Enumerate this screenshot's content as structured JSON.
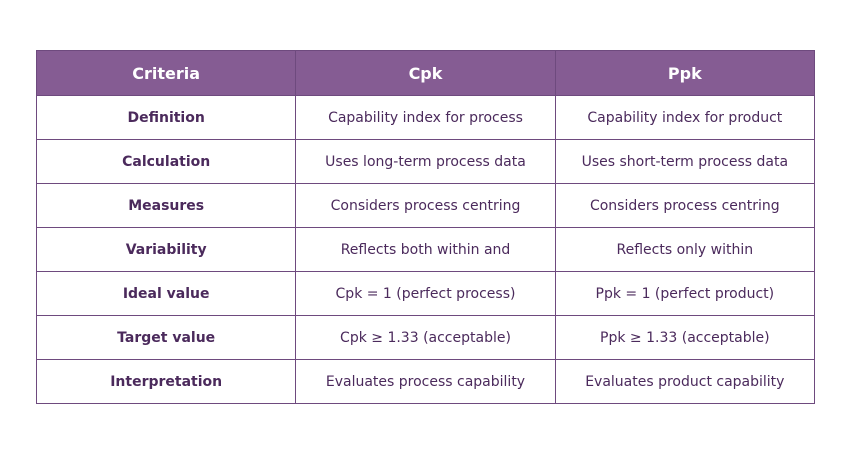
{
  "headers": [
    "Criteria",
    "Cpk",
    "Ppk"
  ],
  "rows": [
    [
      "Definition",
      "Capability index for process",
      "Capability index for product"
    ],
    [
      "Calculation",
      "Uses long-term process data",
      "Uses short-term process data"
    ],
    [
      "Measures",
      "Considers process centring",
      "Considers process centring"
    ],
    [
      "Variability",
      "Reflects both within and",
      "Reflects only within"
    ],
    [
      "Ideal value",
      "Cpk = 1 (perfect process)",
      "Ppk = 1 (perfect product)"
    ],
    [
      "Target value",
      "Cpk ≥ 1.33 (acceptable)",
      "Ppk ≥ 1.33 (acceptable)"
    ],
    [
      "Interpretation",
      "Evaluates process capability",
      "Evaluates product capability"
    ]
  ],
  "colors": {
    "header_bg": "#855c93",
    "text": "#4b2a5c",
    "border": "#6e4a7e"
  }
}
